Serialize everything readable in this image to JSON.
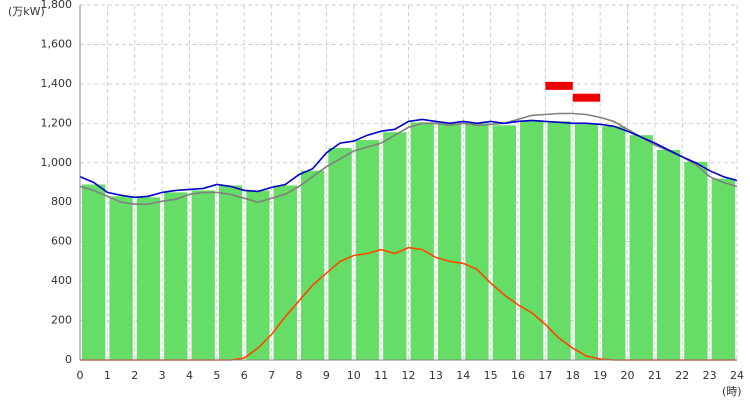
{
  "chart_data": {
    "type": "combo",
    "y_label": "(万kW)",
    "x_label": "(時)",
    "xlim": [
      0,
      24
    ],
    "xticks": [
      0,
      1,
      2,
      3,
      4,
      5,
      6,
      7,
      8,
      9,
      10,
      11,
      12,
      13,
      14,
      15,
      16,
      17,
      18,
      19,
      20,
      21,
      22,
      23,
      24
    ],
    "ylim": [
      0,
      1800
    ],
    "yticks": [
      0,
      200,
      400,
      600,
      800,
      {
        "value": 1000,
        "label": "1,000"
      },
      {
        "value": 1200,
        "label": "1,200"
      },
      {
        "value": 1400,
        "label": "1,400"
      },
      {
        "value": 1600,
        "label": "1,600"
      },
      {
        "value": 1800,
        "label": "1,800"
      }
    ],
    "grid": true,
    "series": [
      {
        "type": "bar",
        "color": "#66dd66",
        "x": [
          0,
          1,
          2,
          3,
          4,
          5,
          6,
          7,
          8,
          9,
          10,
          11,
          12,
          13,
          14,
          15,
          16,
          17,
          18,
          19,
          20,
          21,
          22,
          23
        ],
        "values": [
          890,
          830,
          825,
          850,
          860,
          885,
          860,
          885,
          960,
          1075,
          1115,
          1155,
          1205,
          1200,
          1200,
          1190,
          1215,
          1210,
          1195,
          1185,
          1140,
          1065,
          1005,
          920
        ]
      },
      {
        "type": "line",
        "color": "#808080",
        "x": [
          0,
          0.5,
          1,
          1.5,
          2,
          2.5,
          3,
          3.5,
          4,
          4.5,
          5,
          5.5,
          6,
          6.5,
          7,
          7.5,
          8,
          8.5,
          9,
          9.5,
          10,
          10.5,
          11,
          11.5,
          12,
          12.5,
          13,
          13.5,
          14,
          14.5,
          15,
          15.5,
          16,
          16.5,
          17,
          17.5,
          18,
          18.5,
          19,
          19.5,
          20,
          20.5,
          21,
          21.5,
          22,
          22.5,
          23,
          23.5,
          24
        ],
        "values": [
          880,
          860,
          830,
          800,
          790,
          790,
          805,
          815,
          840,
          850,
          850,
          840,
          820,
          800,
          820,
          840,
          880,
          930,
          980,
          1020,
          1060,
          1080,
          1100,
          1140,
          1180,
          1200,
          1200,
          1190,
          1200,
          1190,
          1195,
          1200,
          1220,
          1240,
          1245,
          1250,
          1250,
          1245,
          1230,
          1210,
          1170,
          1130,
          1090,
          1060,
          1030,
          990,
          930,
          900,
          880
        ]
      },
      {
        "type": "line",
        "color": "#0000cc",
        "x": [
          0,
          0.5,
          1,
          1.5,
          2,
          2.5,
          3,
          3.5,
          4,
          4.5,
          5,
          5.5,
          6,
          6.5,
          7,
          7.5,
          8,
          8.5,
          9,
          9.5,
          10,
          10.5,
          11,
          11.5,
          12,
          12.5,
          13,
          13.5,
          14,
          14.5,
          15,
          15.5,
          16,
          16.5,
          17,
          17.5,
          18,
          18.5,
          19,
          19.5,
          20,
          20.5,
          21,
          21.5,
          22,
          22.5,
          23,
          23.5,
          24
        ],
        "values": [
          930,
          900,
          850,
          835,
          825,
          830,
          850,
          860,
          865,
          870,
          890,
          880,
          860,
          855,
          875,
          890,
          940,
          970,
          1050,
          1100,
          1110,
          1140,
          1160,
          1170,
          1210,
          1220,
          1210,
          1200,
          1210,
          1200,
          1210,
          1200,
          1210,
          1215,
          1210,
          1205,
          1200,
          1200,
          1195,
          1185,
          1160,
          1130,
          1100,
          1065,
          1030,
          1000,
          960,
          930,
          910
        ]
      },
      {
        "type": "line",
        "color": "#ff4400",
        "x": [
          0,
          0.5,
          1,
          1.5,
          2,
          2.5,
          3,
          3.5,
          4,
          4.5,
          5,
          5.5,
          6,
          6.5,
          7,
          7.5,
          8,
          8.5,
          9,
          9.5,
          10,
          10.5,
          11,
          11.5,
          12,
          12.5,
          13,
          13.5,
          14,
          14.5,
          15,
          15.5,
          16,
          16.5,
          17,
          17.5,
          18,
          18.5,
          19,
          19.5,
          20,
          20.5,
          21,
          21.5,
          22,
          22.5,
          23,
          23.5,
          24
        ],
        "values": [
          0,
          0,
          0,
          0,
          0,
          0,
          0,
          0,
          0,
          0,
          0,
          0,
          10,
          60,
          130,
          220,
          300,
          380,
          440,
          500,
          530,
          540,
          560,
          540,
          570,
          560,
          520,
          500,
          490,
          460,
          390,
          330,
          280,
          240,
          180,
          110,
          60,
          20,
          5,
          0,
          0,
          0,
          0,
          0,
          0,
          0,
          0,
          0,
          0
        ]
      },
      {
        "type": "marker",
        "color": "#ee0000",
        "x": [
          17,
          18
        ],
        "values": [
          1390,
          1330
        ]
      }
    ]
  }
}
